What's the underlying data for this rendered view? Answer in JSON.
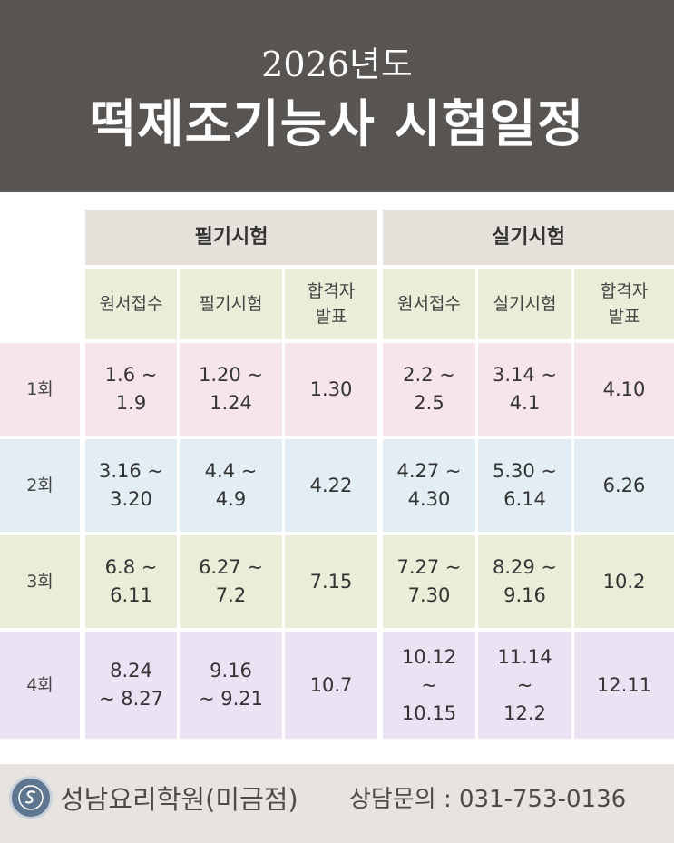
{
  "header": {
    "year": "2026년도",
    "title": "떡제조기능사 시험일정"
  },
  "groups": {
    "written": "필기시험",
    "practical": "실기시험"
  },
  "columns": {
    "written_apply": "원서접수",
    "written_exam": "필기시험",
    "written_result": "합격자\n발표",
    "practical_apply": "원서접수",
    "practical_exam": "실기시험",
    "practical_result": "합격자\n발표"
  },
  "rows": [
    {
      "label": "1회",
      "written_apply": "1.6 ~\n1.9",
      "written_exam": "1.20 ~\n1.24",
      "written_result": "1.30",
      "practical_apply": "2.2 ~\n2.5",
      "practical_exam": "3.14 ~\n4.1",
      "practical_result": "4.10"
    },
    {
      "label": "2회",
      "written_apply": "3.16 ~\n3.20",
      "written_exam": "4.4 ~\n4.9",
      "written_result": "4.22",
      "practical_apply": "4.27 ~\n4.30",
      "practical_exam": "5.30 ~\n6.14",
      "practical_result": "6.26"
    },
    {
      "label": "3회",
      "written_apply": "6.8 ~\n6.11",
      "written_exam": "6.27 ~\n7.2",
      "written_result": "7.15",
      "practical_apply": "7.27 ~\n7.30",
      "practical_exam": "8.29 ~\n9.16",
      "practical_result": "10.2"
    },
    {
      "label": "4회",
      "written_apply": "8.24\n~ 8.27",
      "written_exam": "9.16\n~ 9.21",
      "written_result": "10.7",
      "practical_apply": "10.12\n~\n10.15",
      "practical_exam": "11.14\n~\n12.2",
      "practical_result": "12.11"
    }
  ],
  "footer": {
    "academy": "성남요리학원(미금점)",
    "contact": "상담문의 : 031-753-0136",
    "logo_icon": "academy-emblem-icon"
  }
}
